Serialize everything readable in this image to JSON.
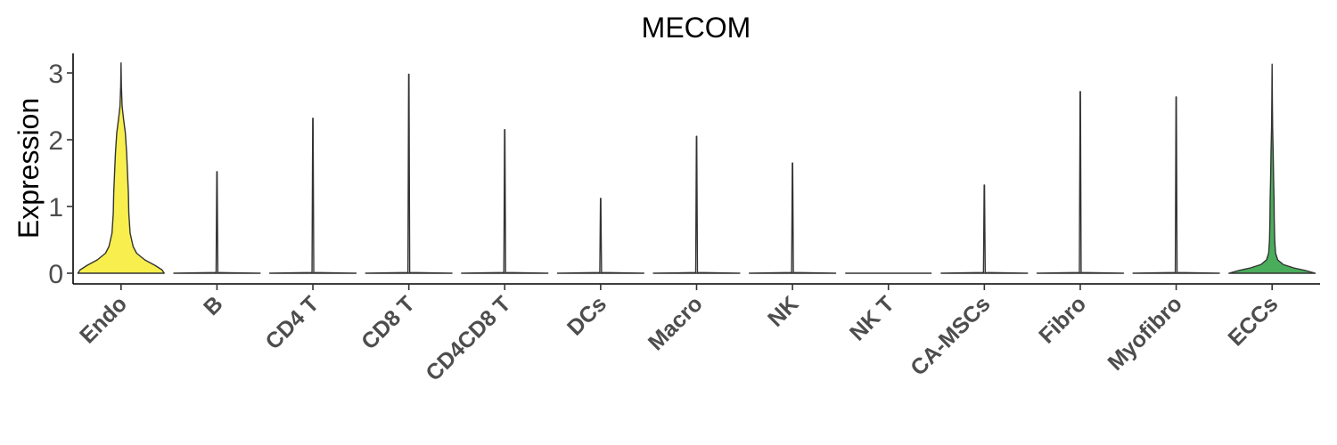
{
  "chart_data": {
    "type": "violin",
    "title": "MECOM",
    "ylabel": "Expression",
    "xlabel": "",
    "ylim": [
      -0.15,
      3.3
    ],
    "yticks": [
      "0",
      "1",
      "2",
      "3"
    ],
    "legend": "none",
    "grid": false,
    "categories": [
      "Endo",
      "B",
      "CD4 T",
      "CD8 T",
      "CD4CD8 T",
      "DCs",
      "Macro",
      "NK",
      "NK T",
      "CA-MSCs",
      "Fibro",
      "Myofibro",
      "ECCs"
    ],
    "series": [
      {
        "category": "Endo",
        "max": 3.15,
        "color": "#f8ef4e",
        "density": [
          [
            0,
            1.0
          ],
          [
            0.05,
            0.95
          ],
          [
            0.12,
            0.78
          ],
          [
            0.2,
            0.55
          ],
          [
            0.3,
            0.36
          ],
          [
            0.4,
            0.28
          ],
          [
            0.6,
            0.21
          ],
          [
            0.9,
            0.18
          ],
          [
            1.2,
            0.17
          ],
          [
            1.5,
            0.15
          ],
          [
            1.8,
            0.13
          ],
          [
            2.1,
            0.1
          ],
          [
            2.3,
            0.06
          ],
          [
            2.5,
            0.025
          ],
          [
            2.8,
            0.008
          ],
          [
            3.15,
            0
          ]
        ]
      },
      {
        "category": "B",
        "max": 1.52,
        "color": "#ffffff",
        "density": [
          [
            0,
            1.0
          ],
          [
            0.01,
            0.02
          ],
          [
            1.52,
            0.004
          ]
        ]
      },
      {
        "category": "CD4 T",
        "max": 2.32,
        "color": "#ffffff",
        "density": [
          [
            0,
            1.0
          ],
          [
            0.01,
            0.02
          ],
          [
            2.32,
            0.004
          ]
        ]
      },
      {
        "category": "CD8 T",
        "max": 2.98,
        "color": "#ffffff",
        "density": [
          [
            0,
            1.0
          ],
          [
            0.01,
            0.02
          ],
          [
            2.98,
            0.004
          ]
        ]
      },
      {
        "category": "CD4CD8 T",
        "max": 2.15,
        "color": "#ffffff",
        "density": [
          [
            0,
            1.0
          ],
          [
            0.01,
            0.02
          ],
          [
            2.15,
            0.004
          ]
        ]
      },
      {
        "category": "DCs",
        "max": 1.12,
        "color": "#ffffff",
        "density": [
          [
            0,
            1.0
          ],
          [
            0.01,
            0.02
          ],
          [
            1.12,
            0.004
          ]
        ]
      },
      {
        "category": "Macro",
        "max": 2.05,
        "color": "#ffffff",
        "density": [
          [
            0,
            1.0
          ],
          [
            0.01,
            0.02
          ],
          [
            2.05,
            0.004
          ]
        ]
      },
      {
        "category": "NK",
        "max": 1.65,
        "color": "#ffffff",
        "density": [
          [
            0,
            1.0
          ],
          [
            0.01,
            0.02
          ],
          [
            1.65,
            0.004
          ]
        ]
      },
      {
        "category": "NK T",
        "max": 0.0,
        "color": "#ffffff",
        "density": [
          [
            0,
            1.0
          ]
        ]
      },
      {
        "category": "CA-MSCs",
        "max": 1.32,
        "color": "#ffffff",
        "density": [
          [
            0,
            1.0
          ],
          [
            0.01,
            0.02
          ],
          [
            1.32,
            0.004
          ]
        ]
      },
      {
        "category": "Fibro",
        "max": 2.72,
        "color": "#ffffff",
        "density": [
          [
            0,
            1.0
          ],
          [
            0.01,
            0.02
          ],
          [
            2.72,
            0.004
          ]
        ]
      },
      {
        "category": "Myofibro",
        "max": 2.64,
        "color": "#ffffff",
        "density": [
          [
            0,
            1.0
          ],
          [
            0.01,
            0.02
          ],
          [
            2.64,
            0.004
          ]
        ]
      },
      {
        "category": "ECCs",
        "max": 3.13,
        "color": "#4aad5b",
        "density": [
          [
            0,
            1.0
          ],
          [
            0.04,
            0.78
          ],
          [
            0.08,
            0.5
          ],
          [
            0.13,
            0.26
          ],
          [
            0.2,
            0.13
          ],
          [
            0.3,
            0.08
          ],
          [
            0.5,
            0.06
          ],
          [
            0.8,
            0.05
          ],
          [
            1.1,
            0.045
          ],
          [
            1.4,
            0.035
          ],
          [
            1.8,
            0.025
          ],
          [
            2.2,
            0.012
          ],
          [
            2.6,
            0.006
          ],
          [
            3.13,
            0
          ]
        ]
      }
    ]
  }
}
